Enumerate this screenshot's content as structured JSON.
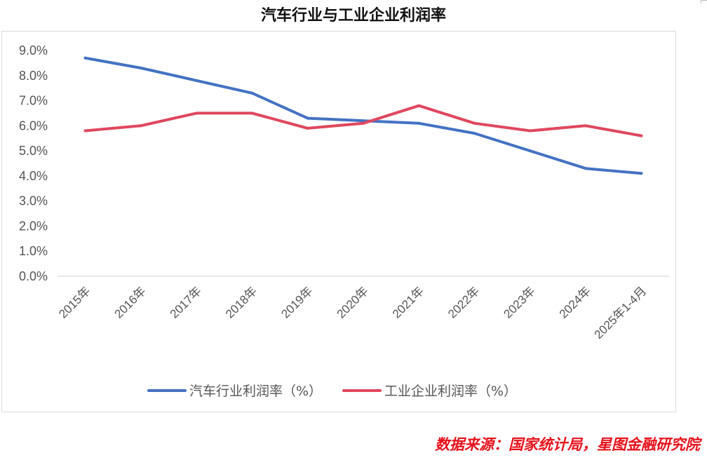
{
  "chart_data": {
    "type": "line",
    "title": "汽车行业与工业企业利润率",
    "categories": [
      "2015年",
      "2016年",
      "2017年",
      "2018年",
      "2019年",
      "2020年",
      "2021年",
      "2022年",
      "2023年",
      "2024年",
      "2025年1-4月"
    ],
    "y_ticks": [
      "0.0%",
      "1.0%",
      "2.0%",
      "3.0%",
      "4.0%",
      "5.0%",
      "6.0%",
      "7.0%",
      "8.0%",
      "9.0%"
    ],
    "ylim": [
      0,
      9
    ],
    "grid": false,
    "legend_position": "bottom",
    "series": [
      {
        "name": "汽车行业利润率（%）",
        "color": "#4472c4",
        "values": [
          8.7,
          8.3,
          7.8,
          7.3,
          6.3,
          6.2,
          6.1,
          5.7,
          5.0,
          4.3,
          4.1
        ]
      },
      {
        "name": "工业企业利润率（%）",
        "color": "#e0475e",
        "values": [
          5.8,
          6.0,
          6.5,
          6.5,
          5.9,
          6.1,
          6.8,
          6.1,
          5.8,
          6.0,
          5.6
        ]
      }
    ]
  },
  "source_text": "数据来源：国家统计局，星图金融研究院"
}
